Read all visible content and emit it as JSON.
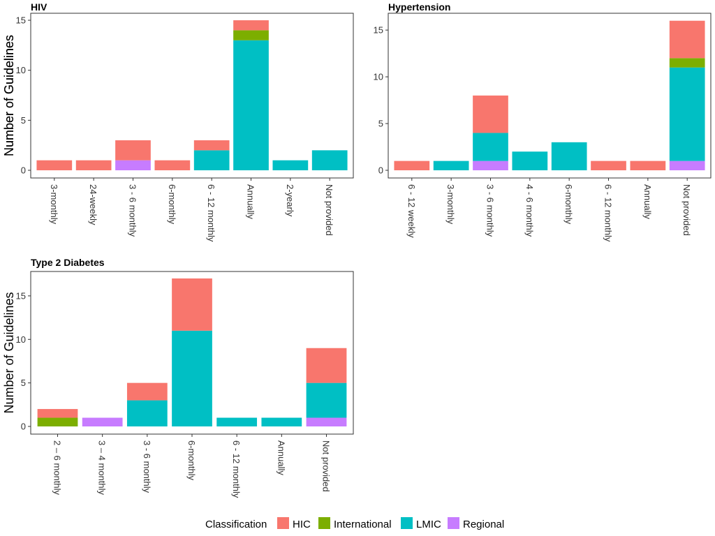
{
  "legend": {
    "title": "Classification",
    "entries": [
      {
        "name": "HIC",
        "color": "#F8766D"
      },
      {
        "name": "International",
        "color": "#7CAE00"
      },
      {
        "name": "LMIC",
        "color": "#00BFC4"
      },
      {
        "name": "Regional",
        "color": "#C77CFF"
      }
    ]
  },
  "chart_data": [
    {
      "type": "bar",
      "stacked": true,
      "title": "HIV",
      "ylabel": "Number of Guidelines",
      "xlabel": "",
      "ylim": [
        0,
        15.7
      ],
      "yticks": [
        0,
        5,
        10,
        15
      ],
      "categories": [
        "3-monthly",
        "24-weekly",
        "3 - 6 monthly",
        "6-monthly",
        "6 - 12 monthly",
        "Annually",
        "2-yearly",
        "Not provided"
      ],
      "series": [
        {
          "name": "Regional",
          "values": [
            0,
            0,
            1,
            0,
            0,
            0,
            0,
            0
          ]
        },
        {
          "name": "LMIC",
          "values": [
            0,
            0,
            0,
            0,
            2,
            13,
            1,
            2
          ]
        },
        {
          "name": "International",
          "values": [
            0,
            0,
            0,
            0,
            0,
            1,
            0,
            0
          ]
        },
        {
          "name": "HIC",
          "values": [
            1,
            1,
            2,
            1,
            1,
            1,
            0,
            0
          ]
        }
      ]
    },
    {
      "type": "bar",
      "stacked": true,
      "title": "Hypertension",
      "ylabel": "Number of Guidelines",
      "xlabel": "",
      "ylim": [
        0,
        16.8
      ],
      "yticks": [
        0,
        5,
        10,
        15
      ],
      "categories": [
        "6 - 12 weekly",
        "3-monthly",
        "3 - 6 monthly",
        "4 - 6 monthly",
        "6-monthly",
        "6 - 12 monthly",
        "Annually",
        "Not provided"
      ],
      "series": [
        {
          "name": "Regional",
          "values": [
            0,
            0,
            1,
            0,
            0,
            0,
            0,
            1
          ]
        },
        {
          "name": "LMIC",
          "values": [
            0,
            1,
            3,
            2,
            3,
            0,
            0,
            10
          ]
        },
        {
          "name": "International",
          "values": [
            0,
            0,
            0,
            0,
            0,
            0,
            0,
            1
          ]
        },
        {
          "name": "HIC",
          "values": [
            1,
            0,
            4,
            0,
            0,
            1,
            1,
            4
          ]
        }
      ]
    },
    {
      "type": "bar",
      "stacked": true,
      "title": "Type 2 Diabetes",
      "ylabel": "Number of Guidelines",
      "xlabel": "",
      "ylim": [
        0,
        17.8
      ],
      "yticks": [
        0,
        5,
        10,
        15
      ],
      "categories": [
        "2 – 6 monthly",
        "3 – 4 monthly",
        "3 - 6 monthly",
        "6-monthly",
        "6 - 12 monthly",
        "Annually",
        "Not provided"
      ],
      "series": [
        {
          "name": "Regional",
          "values": [
            0,
            1,
            0,
            0,
            0,
            0,
            1
          ]
        },
        {
          "name": "LMIC",
          "values": [
            0,
            0,
            3,
            11,
            1,
            1,
            4
          ]
        },
        {
          "name": "International",
          "values": [
            1,
            0,
            0,
            0,
            0,
            0,
            0
          ]
        },
        {
          "name": "HIC",
          "values": [
            1,
            0,
            2,
            6,
            0,
            0,
            4
          ]
        }
      ]
    }
  ]
}
